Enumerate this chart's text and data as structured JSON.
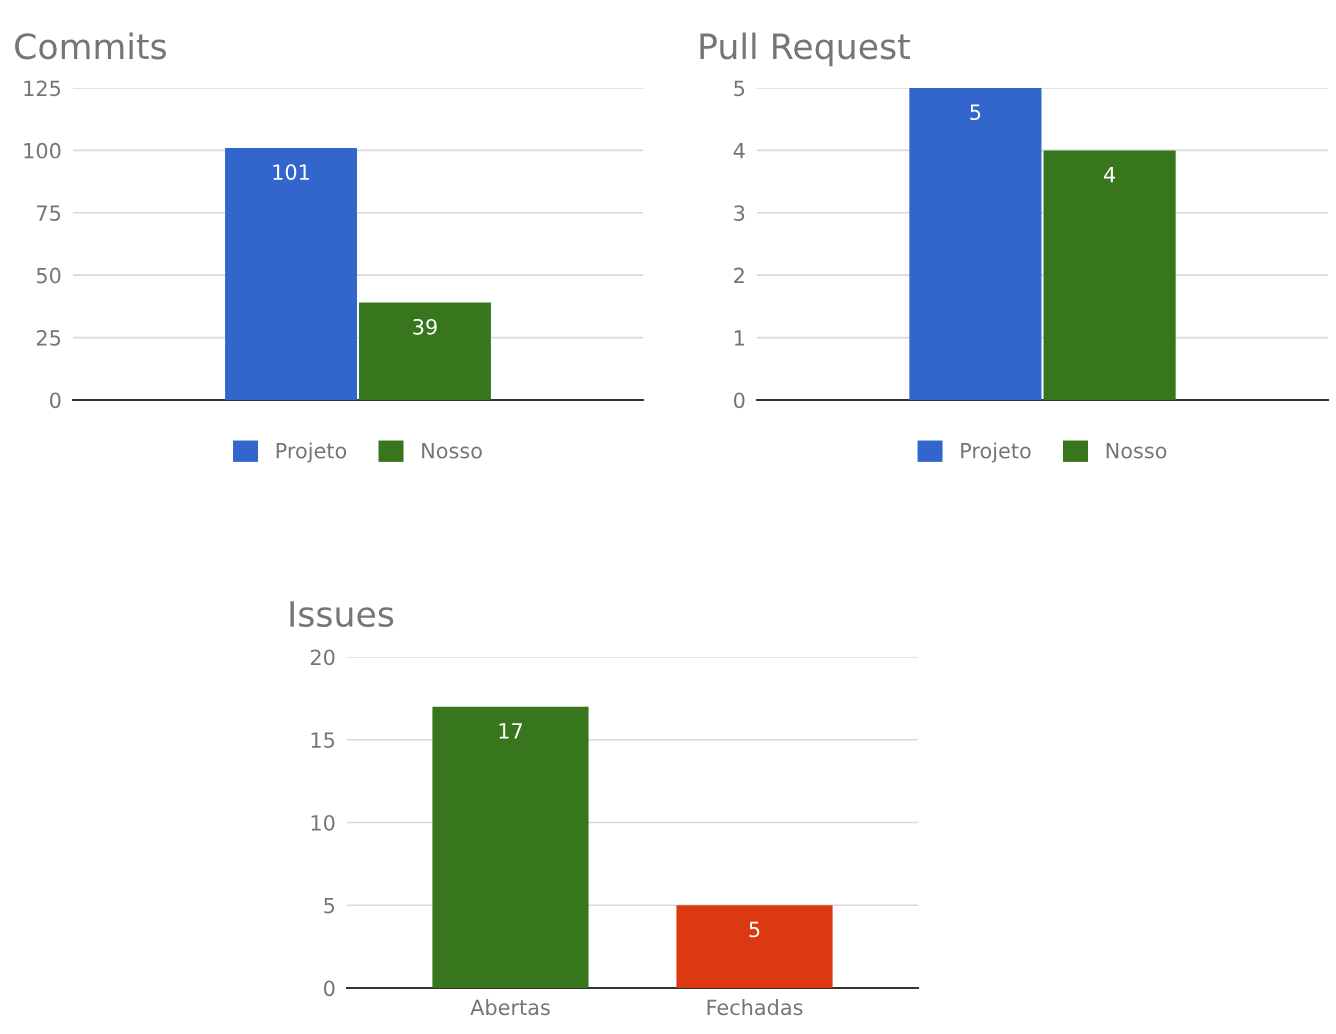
{
  "chart_data": [
    {
      "type": "bar",
      "title": "Commits",
      "categories": [
        null
      ],
      "series": [
        {
          "name": "Projeto",
          "color": "#3366cc",
          "values": [
            101
          ]
        },
        {
          "name": "Nosso",
          "color": "#38761d",
          "values": [
            39
          ]
        }
      ],
      "ylim": [
        0,
        125
      ],
      "yticks": [
        0,
        25,
        50,
        75,
        100,
        125
      ],
      "grid": "y",
      "legend": "bottom",
      "data_labels": true
    },
    {
      "type": "bar",
      "title": "Pull Request",
      "categories": [
        null
      ],
      "series": [
        {
          "name": "Projeto",
          "color": "#3366cc",
          "values": [
            5
          ]
        },
        {
          "name": "Nosso",
          "color": "#38761d",
          "values": [
            4
          ]
        }
      ],
      "ylim": [
        0,
        5
      ],
      "yticks": [
        0,
        1,
        2,
        3,
        4,
        5
      ],
      "grid": "y",
      "legend": "bottom",
      "data_labels": true
    },
    {
      "type": "bar",
      "title": "Issues",
      "categories": [
        "Abertas",
        "Fechadas"
      ],
      "values": [
        17,
        5
      ],
      "colors": [
        "#38761d",
        "#dc3912"
      ],
      "ylim": [
        0,
        20
      ],
      "yticks": [
        0,
        5,
        10,
        15,
        20
      ],
      "grid": "y",
      "data_labels": true
    }
  ]
}
